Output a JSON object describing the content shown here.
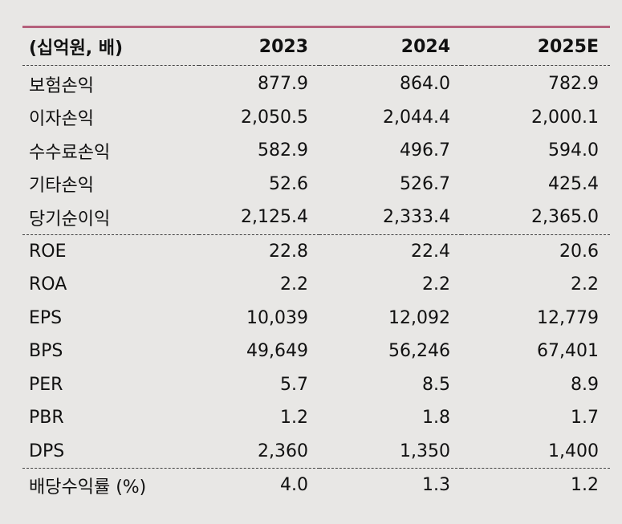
{
  "header": {
    "unit_label": "(십억원, 배)",
    "years": [
      "2023",
      "2024",
      "2025E"
    ]
  },
  "rows": [
    {
      "label": "보험손익",
      "values": [
        "877.9",
        "864.0",
        "782.9"
      ]
    },
    {
      "label": "이자손익",
      "values": [
        "2,050.5",
        "2,044.4",
        "2,000.1"
      ]
    },
    {
      "label": "수수료손익",
      "values": [
        "582.9",
        "496.7",
        "594.0"
      ]
    },
    {
      "label": "기타손익",
      "values": [
        "52.6",
        "526.7",
        "425.4"
      ]
    },
    {
      "label": "당기순이익",
      "values": [
        "2,125.4",
        "2,333.4",
        "2,365.0"
      ]
    },
    {
      "label": "ROE",
      "values": [
        "22.8",
        "22.4",
        "20.6"
      ]
    },
    {
      "label": "ROA",
      "values": [
        "2.2",
        "2.2",
        "2.2"
      ]
    },
    {
      "label": "EPS",
      "values": [
        "10,039",
        "12,092",
        "12,779"
      ]
    },
    {
      "label": "BPS",
      "values": [
        "49,649",
        "56,246",
        "67,401"
      ]
    },
    {
      "label": "PER",
      "values": [
        "5.7",
        "8.5",
        "8.9"
      ]
    },
    {
      "label": "PBR",
      "values": [
        "1.2",
        "1.8",
        "1.7"
      ]
    },
    {
      "label": "DPS",
      "values": [
        "2,360",
        "1,350",
        "1,400"
      ]
    },
    {
      "label": "배당수익률 (%)",
      "values": [
        "4.0",
        "1.3",
        "1.2"
      ]
    }
  ],
  "colors": {
    "accent_line": "#b5617c",
    "background": "#e8e7e5"
  }
}
